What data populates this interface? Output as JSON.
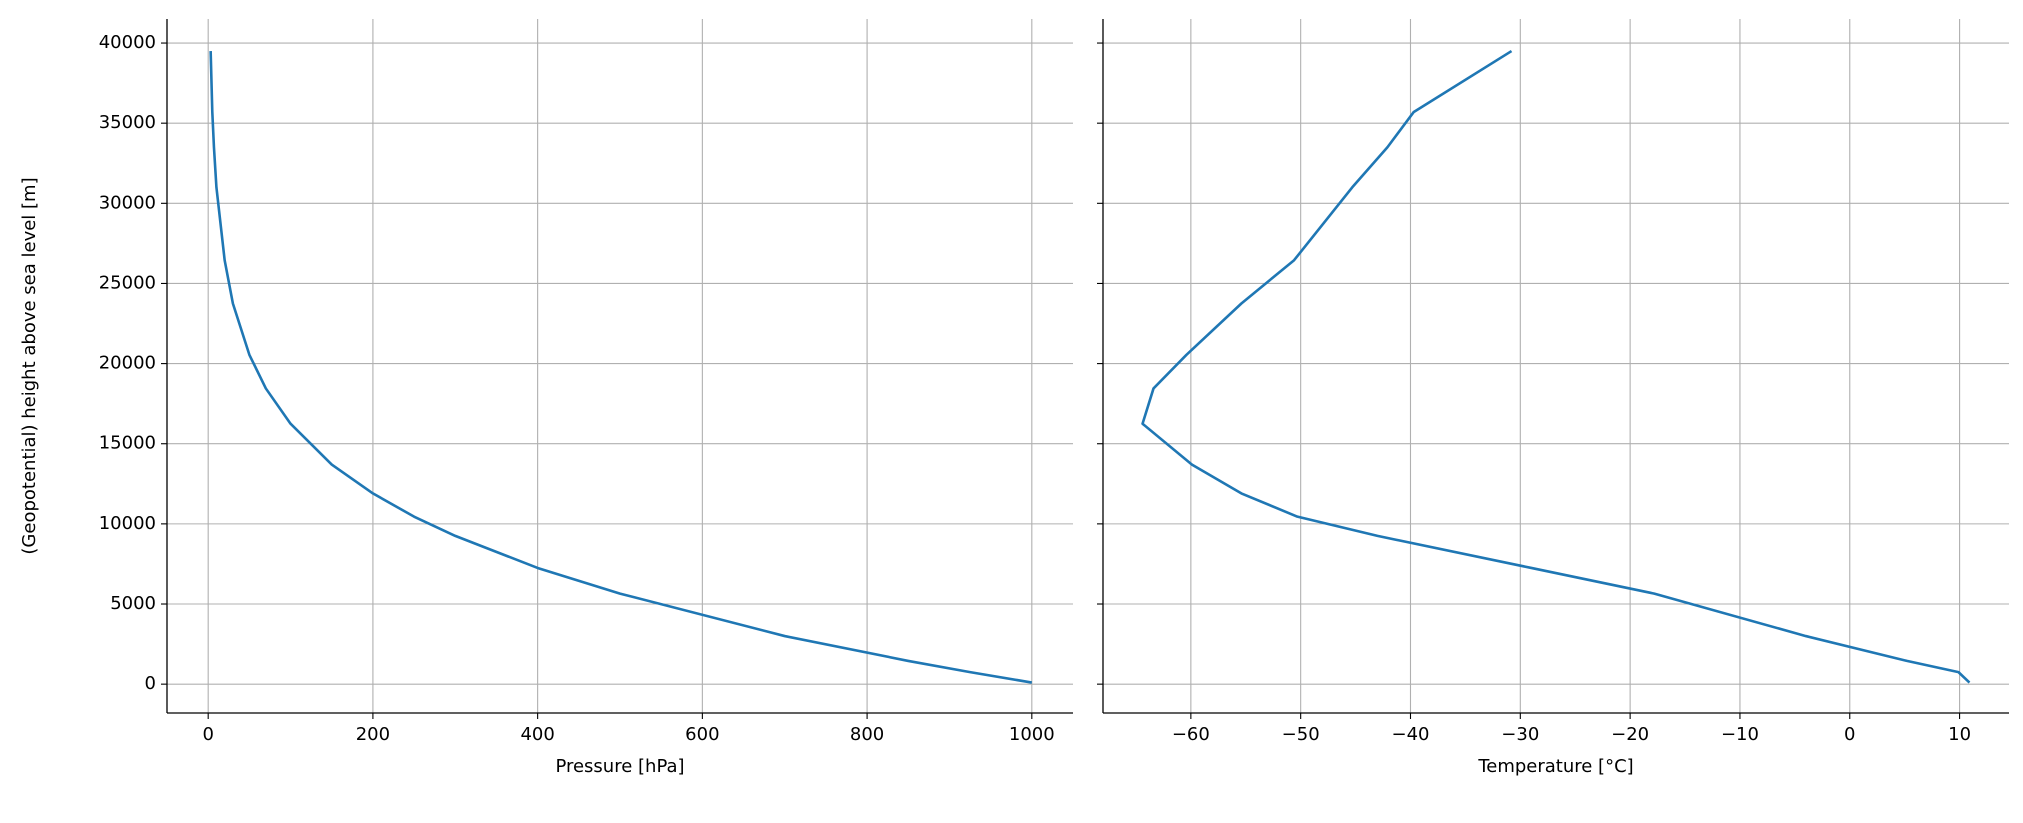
{
  "chart_data": [
    {
      "type": "line",
      "ylabel": "(Geopotential) height above sea level [m]",
      "xlabel": "Pressure [hPa]",
      "x": [
        1000,
        925,
        850,
        700,
        500,
        400,
        300,
        250,
        200,
        150,
        100,
        70,
        50,
        30,
        20,
        10,
        7,
        5,
        3
      ],
      "series": [
        {
          "color": "#1f77b4",
          "values": [
            100,
            750,
            1450,
            3000,
            5650,
            7250,
            9250,
            10450,
            11900,
            13700,
            16250,
            18450,
            20550,
            23750,
            26450,
            31000,
            33500,
            35700,
            39500
          ]
        }
      ],
      "xlim": [
        -50,
        1050
      ],
      "xticks": [
        0,
        200,
        400,
        600,
        800,
        1000
      ],
      "ylim": [
        -1800,
        41500
      ],
      "yticks": [
        0,
        5000,
        10000,
        15000,
        20000,
        25000,
        30000,
        35000,
        40000
      ],
      "grid": true
    },
    {
      "type": "line",
      "xlabel": "Temperature [°C]",
      "x": [
        10.9,
        9.9,
        5.2,
        -4,
        -17.8,
        -29,
        -43,
        -50.3,
        -55.4,
        -59.9,
        -64.4,
        -63.4,
        -60.4,
        -55.4,
        -50.6,
        -45.3,
        -42.1,
        -39.7,
        -30.8
      ],
      "series": [
        {
          "color": "#1f77b4",
          "values": [
            100,
            750,
            1450,
            3000,
            5650,
            7250,
            9250,
            10450,
            11900,
            13700,
            16250,
            18450,
            20550,
            23750,
            26450,
            31000,
            33500,
            35700,
            39500
          ]
        }
      ],
      "xlim": [
        -68,
        14.5
      ],
      "xticks": [
        {
          "value": -60,
          "label": "−60"
        },
        {
          "value": -50,
          "label": "−50"
        },
        {
          "value": -40,
          "label": "−40"
        },
        {
          "value": -30,
          "label": "−30"
        },
        {
          "value": -20,
          "label": "−20"
        },
        {
          "value": -10,
          "label": "−10"
        },
        0,
        10
      ],
      "ylim": [
        -1800,
        41500
      ],
      "grid": true
    }
  ]
}
